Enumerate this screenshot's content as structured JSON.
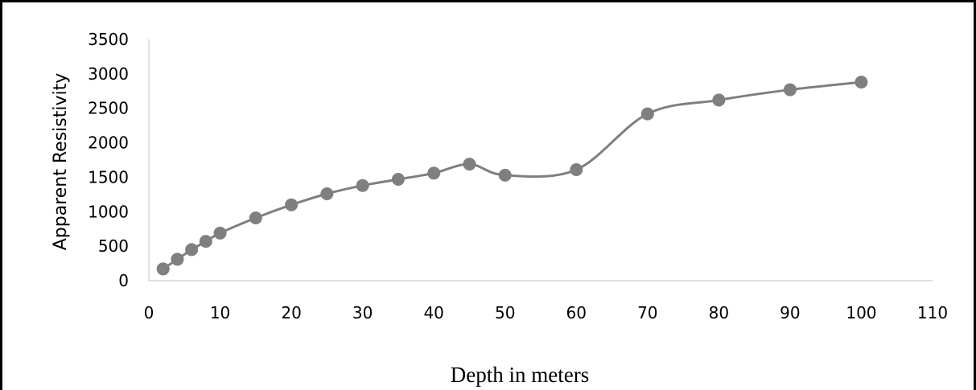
{
  "chart_data": {
    "type": "line",
    "title": "",
    "xlabel": "Depth in meters",
    "ylabel": "Apparent Resistivity",
    "xlim": [
      0,
      110
    ],
    "ylim": [
      0,
      3500
    ],
    "x_ticks": [
      0,
      10,
      20,
      30,
      40,
      50,
      60,
      70,
      80,
      90,
      100,
      110
    ],
    "y_ticks": [
      0,
      500,
      1000,
      1500,
      2000,
      2500,
      3000,
      3500
    ],
    "grid": false,
    "legend": "none",
    "smooth": true,
    "marker": "circle",
    "series_color": "#7f7f7f",
    "series": [
      {
        "x": [
          2,
          4,
          6,
          8,
          10,
          15,
          20,
          25,
          30,
          35,
          40,
          45,
          50,
          60,
          70,
          80,
          90,
          100
        ],
        "y": [
          170,
          310,
          450,
          570,
          690,
          910,
          1100,
          1260,
          1380,
          1470,
          1560,
          1690,
          1530,
          1610,
          2420,
          2620,
          2770,
          2880
        ]
      }
    ]
  }
}
